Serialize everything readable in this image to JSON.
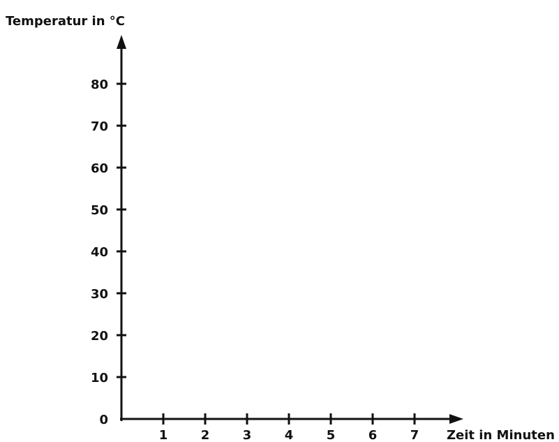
{
  "chart_data": {
    "type": "line",
    "title": "",
    "xlabel": "Zeit in Minuten",
    "ylabel": "Temperatur in °C",
    "x_ticks": [
      "1",
      "2",
      "3",
      "4",
      "5",
      "6",
      "7"
    ],
    "y_ticks": [
      "0",
      "10",
      "20",
      "30",
      "40",
      "50",
      "60",
      "70",
      "80"
    ],
    "xlim": [
      0,
      7
    ],
    "ylim": [
      0,
      80
    ],
    "series": [],
    "grid": false,
    "axis_color": "#111111"
  }
}
